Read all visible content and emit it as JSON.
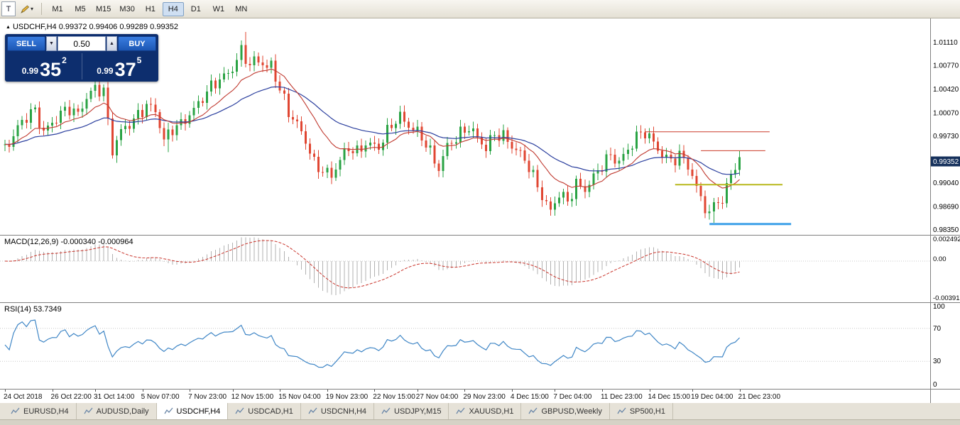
{
  "toolbar": {
    "window_icon": "T",
    "timeframes": [
      {
        "label": "M1"
      },
      {
        "label": "M5"
      },
      {
        "label": "M15"
      },
      {
        "label": "M30"
      },
      {
        "label": "H1"
      },
      {
        "label": "H4",
        "active": true
      },
      {
        "label": "D1"
      },
      {
        "label": "W1"
      },
      {
        "label": "MN"
      }
    ]
  },
  "chart": {
    "title_marker": "▲",
    "title": "USDCHF,H4 0.99372 0.99406 0.99289 0.99352"
  },
  "trade_panel": {
    "sell_label": "SELL",
    "buy_label": "BUY",
    "lot": "0.50",
    "sell_price": {
      "prefix": "0.99",
      "big": "35",
      "sup": "2"
    },
    "buy_price": {
      "prefix": "0.99",
      "big": "37",
      "sup": "5"
    }
  },
  "chart_data": {
    "type": "candlestick",
    "symbol": "USDCHF",
    "timeframe": "H4",
    "price_range": [
      0.9827,
      1.0146
    ],
    "price_axis": [
      {
        "v": 1.0111,
        "t": "1.01110"
      },
      {
        "v": 1.0077,
        "t": "1.00770"
      },
      {
        "v": 1.0042,
        "t": "1.00420"
      },
      {
        "v": 1.0007,
        "t": "1.00070"
      },
      {
        "v": 0.9973,
        "t": "0.99730"
      },
      {
        "v": 0.9938,
        "t": "0.99380"
      },
      {
        "v": 0.9904,
        "t": "0.99040"
      },
      {
        "v": 0.9869,
        "t": "0.98690"
      },
      {
        "v": 0.9835,
        "t": "0.98350"
      }
    ],
    "badge": {
      "value": 0.99352,
      "text": "0.99352"
    },
    "candle_count": 172,
    "close_anchors": [
      [
        0,
        0.9953
      ],
      [
        2,
        0.9962
      ],
      [
        4,
        0.9985
      ],
      [
        6,
        1.0002
      ],
      [
        8,
        1.001
      ],
      [
        10,
        0.9978
      ],
      [
        12,
        0.9992
      ],
      [
        14,
        1.0006
      ],
      [
        16,
        1.0014
      ],
      [
        18,
        1.0004
      ],
      [
        20,
        1.003
      ],
      [
        22,
        1.0043
      ],
      [
        24,
        1.004
      ],
      [
        25,
        0.9992
      ],
      [
        26,
        0.9952
      ],
      [
        28,
        0.998
      ],
      [
        31,
        0.9996
      ],
      [
        34,
        1.0018
      ],
      [
        36,
        1.001
      ],
      [
        38,
        0.9966
      ],
      [
        40,
        0.9984
      ],
      [
        42,
        0.999
      ],
      [
        44,
        1.0004
      ],
      [
        46,
        1.002
      ],
      [
        48,
        1.0038
      ],
      [
        50,
        1.0052
      ],
      [
        52,
        1.006
      ],
      [
        54,
        1.0072
      ],
      [
        56,
        1.0098
      ],
      [
        58,
        1.0078
      ],
      [
        60,
        1.0086
      ],
      [
        62,
        1.0072
      ],
      [
        63,
        1.0078
      ],
      [
        65,
        1.0042
      ],
      [
        67,
        1.0008
      ],
      [
        69,
        0.999
      ],
      [
        71,
        0.9966
      ],
      [
        73,
        0.9932
      ],
      [
        75,
        0.9922
      ],
      [
        77,
        0.9914
      ],
      [
        79,
        0.9938
      ],
      [
        81,
        0.9956
      ],
      [
        83,
        0.9948
      ],
      [
        85,
        0.9962
      ],
      [
        88,
        0.9956
      ],
      [
        91,
        0.999
      ],
      [
        93,
        1.0001
      ],
      [
        95,
        0.9988
      ],
      [
        97,
        0.9978
      ],
      [
        99,
        0.9962
      ],
      [
        101,
        0.9935
      ],
      [
        102,
        0.9925
      ],
      [
        104,
        0.9958
      ],
      [
        107,
        0.9976
      ],
      [
        109,
        0.9986
      ],
      [
        111,
        0.997
      ],
      [
        113,
        0.9955
      ],
      [
        115,
        0.9976
      ],
      [
        117,
        0.9972
      ],
      [
        119,
        0.9958
      ],
      [
        121,
        0.9946
      ],
      [
        123,
        0.9928
      ],
      [
        125,
        0.9898
      ],
      [
        127,
        0.9872
      ],
      [
        128,
        0.9862
      ],
      [
        130,
        0.9888
      ],
      [
        132,
        0.9876
      ],
      [
        134,
        0.9902
      ],
      [
        136,
        0.9894
      ],
      [
        138,
        0.9912
      ],
      [
        140,
        0.993
      ],
      [
        142,
        0.9944
      ],
      [
        144,
        0.9934
      ],
      [
        146,
        0.9952
      ],
      [
        148,
        0.9972
      ],
      [
        150,
        0.9979
      ],
      [
        152,
        0.9962
      ],
      [
        154,
        0.9945
      ],
      [
        156,
        0.9936
      ],
      [
        158,
        0.9944
      ],
      [
        160,
        0.993
      ],
      [
        162,
        0.9896
      ],
      [
        164,
        0.9868
      ],
      [
        165,
        0.9856
      ],
      [
        167,
        0.9884
      ],
      [
        168,
        0.987
      ],
      [
        169,
        0.99
      ],
      [
        170,
        0.9918
      ],
      [
        172,
        0.9938
      ]
    ],
    "wiggle": {
      "a1": 0.0007,
      "f1": 1.83,
      "p1": 0.4,
      "a2": 0.0004,
      "f2": 3.7,
      "p2": 1.9
    },
    "wick_overrides": [
      {
        "i": 26,
        "low": 0.9933
      },
      {
        "i": 38,
        "low": 0.9949
      },
      {
        "i": 56,
        "high": 1.0126
      },
      {
        "i": 101,
        "low": 0.9916
      },
      {
        "i": 128,
        "low": 0.9856
      },
      {
        "i": 165,
        "low": 0.9845
      }
    ],
    "ma_periods": [
      13,
      34
    ],
    "colors": {
      "up": "#2aa344",
      "down": "#e04632",
      "ma_fast": "#c03a30",
      "ma_slow": "#2b3f9e",
      "badge_bg": "#16315c",
      "macd_signal": "#c9342b",
      "rsi_line": "#3f86c6",
      "hist": "#b2b2b2"
    },
    "lines": [
      {
        "price": 0.9979,
        "i1": 149,
        "i2": 178,
        "color": "#cc3b2a",
        "width": 1
      },
      {
        "price": 0.9951,
        "i1": 162,
        "i2": 177,
        "color": "#cc3b2a",
        "width": 1
      },
      {
        "price": 0.9901,
        "i1": 156,
        "i2": 181,
        "color": "#b8b81e",
        "width": 2
      },
      {
        "price": 0.9843,
        "i1": 164,
        "i2": 183,
        "color": "#3da0e8",
        "width": 3
      }
    ],
    "macd": {
      "label": "MACD(12,26,9) -0.000340 -0.000964",
      "range": [
        -0.00404,
        0.00258
      ],
      "axis": [
        {
          "v": 0.002492,
          "t": "0.002492"
        },
        {
          "v": 0,
          "t": "0.00"
        },
        {
          "v": -0.003913,
          "t": "-0.003913"
        }
      ]
    },
    "rsi": {
      "label": "RSI(14) 53.7349",
      "levels": [
        70,
        30
      ],
      "axis": [
        {
          "v": 100,
          "t": "100"
        },
        {
          "v": 70,
          "t": "70"
        },
        {
          "v": 30,
          "t": "30"
        },
        {
          "v": 0,
          "t": "0"
        }
      ]
    },
    "time_labels": [
      {
        "i": 0,
        "t": "24 Oct 2018"
      },
      {
        "i": 11,
        "t": "26 Oct 22:00"
      },
      {
        "i": 21,
        "t": "31 Oct 14:00"
      },
      {
        "i": 32,
        "t": "5 Nov 07:00"
      },
      {
        "i": 43,
        "t": "7 Nov 23:00"
      },
      {
        "i": 53,
        "t": "12 Nov 15:00"
      },
      {
        "i": 64,
        "t": "15 Nov 04:00"
      },
      {
        "i": 75,
        "t": "19 Nov 23:00"
      },
      {
        "i": 86,
        "t": "22 Nov 15:00"
      },
      {
        "i": 96,
        "t": "27 Nov 04:00"
      },
      {
        "i": 107,
        "t": "29 Nov 23:00"
      },
      {
        "i": 118,
        "t": "4 Dec 15:00"
      },
      {
        "i": 128,
        "t": "7 Dec 04:00"
      },
      {
        "i": 139,
        "t": "11 Dec 23:00"
      },
      {
        "i": 150,
        "t": "14 Dec 15:00"
      },
      {
        "i": 160,
        "t": "19 Dec 04:00"
      },
      {
        "i": 171,
        "t": "21 Dec 23:00"
      }
    ]
  },
  "tabs": [
    {
      "label": "EURUSD,H4"
    },
    {
      "label": "AUDUSD,Daily"
    },
    {
      "label": "USDCHF,H4",
      "active": true
    },
    {
      "label": "USDCAD,H1"
    },
    {
      "label": "USDCNH,H4"
    },
    {
      "label": "USDJPY,M15"
    },
    {
      "label": "XAUUSD,H1"
    },
    {
      "label": "GBPUSD,Weekly"
    },
    {
      "label": "SP500,H1"
    }
  ]
}
